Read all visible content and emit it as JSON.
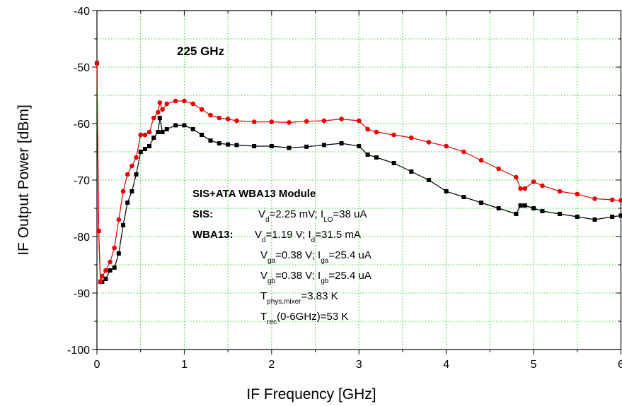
{
  "chart_data": {
    "type": "line",
    "xlabel": "IF Frequency [GHz]",
    "ylabel": "IF Output Power [dBm]",
    "note": "225 GHz",
    "annotation": {
      "title": "SIS+ATA WBA13 Module",
      "rows": [
        {
          "label": "SIS:",
          "text": [
            "V",
            "d",
            "=2.25 mV; I",
            "LO",
            "=38 uA"
          ]
        },
        {
          "label": "WBA13:",
          "text": [
            "V",
            "d",
            "=1.19 V; I",
            "d",
            "=31.5 mA"
          ]
        },
        {
          "text": [
            "V",
            "ga",
            "=0.38 V; I",
            "ga",
            "=25.4 uA"
          ]
        },
        {
          "text": [
            "V",
            "gb",
            "=0.38 V; I",
            "gb",
            "=25.4 uA"
          ]
        },
        {
          "text": [
            "T",
            "phys,mixer",
            "=3.83 K"
          ]
        },
        {
          "text": [
            "T",
            "rec",
            "(0-6GHz)=53 K"
          ]
        }
      ]
    },
    "x": [
      0,
      0.02,
      0.04,
      0.06,
      0.1,
      0.15,
      0.2,
      0.25,
      0.3,
      0.35,
      0.4,
      0.45,
      0.5,
      0.55,
      0.6,
      0.65,
      0.7,
      0.72,
      0.75,
      0.8,
      0.9,
      1.0,
      1.1,
      1.2,
      1.3,
      1.4,
      1.5,
      1.6,
      1.8,
      2.0,
      2.2,
      2.4,
      2.6,
      2.8,
      3.0,
      3.1,
      3.2,
      3.4,
      3.6,
      3.8,
      4.0,
      4.2,
      4.4,
      4.6,
      4.8,
      4.85,
      4.9,
      5.0,
      5.1,
      5.3,
      5.5,
      5.7,
      5.9,
      6.0
    ],
    "series": [
      {
        "color": "#000000",
        "marker": "square",
        "values": [
          -49.3,
          -79,
          -88,
          -88,
          -87.5,
          -86,
          -85.5,
          -83,
          -78,
          -74,
          -72,
          -69,
          -65,
          -64.5,
          -64,
          -62.5,
          -61.5,
          -59,
          -61.5,
          -61,
          -60.3,
          -60.3,
          -61,
          -62,
          -63,
          -63.5,
          -63.7,
          -63.8,
          -64,
          -64,
          -64.3,
          -64.1,
          -63.8,
          -63.5,
          -64,
          -65.5,
          -66,
          -67,
          -68.5,
          -70,
          -72,
          -73,
          -74,
          -75,
          -76,
          -74.5,
          -74.5,
          -75,
          -75.5,
          -76,
          -76.5,
          -77,
          -76.5,
          -76.3
        ]
      },
      {
        "color": "#ee0000",
        "marker": "circle",
        "values": [
          -49.3,
          -79,
          -88,
          -87,
          -86,
          -84.5,
          -82,
          -77,
          -72,
          -69,
          -67.5,
          -66,
          -62,
          -62,
          -61.5,
          -59,
          -58,
          -56.3,
          -57.5,
          -56.5,
          -56,
          -56,
          -56.5,
          -57.5,
          -58.5,
          -59,
          -59.2,
          -59.5,
          -59.7,
          -59.7,
          -59.8,
          -59.6,
          -59.5,
          -59.2,
          -59.5,
          -61,
          -61.5,
          -62,
          -62.5,
          -63.3,
          -64,
          -65,
          -66.5,
          -68,
          -69.5,
          -71.5,
          -71.5,
          -70.3,
          -71,
          -72,
          -72.5,
          -73.3,
          -73.5,
          -73.6
        ]
      }
    ],
    "xlim": [
      0,
      6
    ],
    "xticks": [
      0,
      1,
      2,
      3,
      4,
      5,
      6
    ],
    "xminorticks": [
      0.5,
      1.5,
      2.5,
      3.5,
      4.5,
      5.5
    ],
    "ylim": [
      -100,
      -40
    ],
    "yticks": [
      -100,
      -90,
      -80,
      -70,
      -60,
      -50,
      -40
    ],
    "yminorticks": [
      -95,
      -85,
      -75,
      -65,
      -55,
      -45
    ],
    "grid": true,
    "grid_color": "#33cc33"
  }
}
